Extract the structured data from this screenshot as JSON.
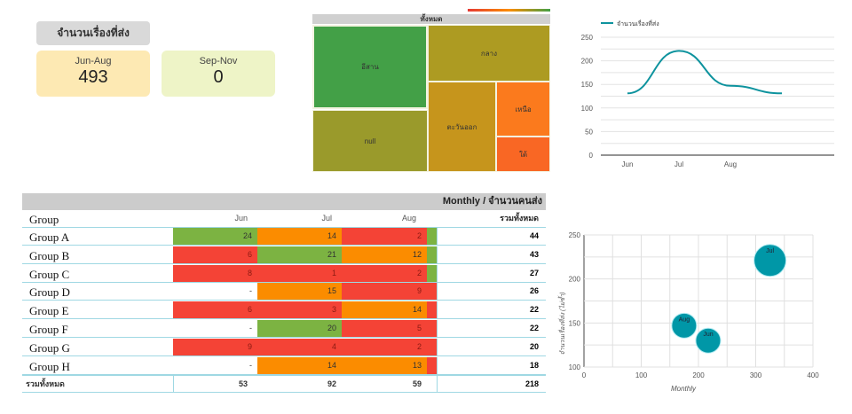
{
  "scorecard": {
    "title": "จำนวนเรื่องที่ส่ง",
    "cards": [
      {
        "label": "Jun-Aug",
        "value": "493",
        "color": "#fde9b3"
      },
      {
        "label": "Sep-Nov",
        "value": "0",
        "color": "#eef4c7"
      }
    ]
  },
  "treemap": {
    "title": "ทั้งหมด",
    "cells": [
      {
        "label": "อีสาน",
        "color": "#43a047"
      },
      {
        "label": "null",
        "color": "#9a9a2b"
      },
      {
        "label": "กลาง",
        "color": "#ad9b22"
      },
      {
        "label": "ตะวันออก",
        "color": "#c6951c"
      },
      {
        "label": "เหนือ",
        "color": "#fb7a1d"
      },
      {
        "label": "ใต้",
        "color": "#f96724"
      }
    ],
    "scale_colors": [
      "#e53935",
      "#fb8c00",
      "#43a047"
    ]
  },
  "line_chart": {
    "chart_data": {
      "type": "line",
      "legend": "จำนวนเรื่องที่ส่ง",
      "legend_position": "top-left",
      "categories": [
        "Jun",
        "Jul",
        "Aug",
        ""
      ],
      "values": [
        131,
        221,
        147,
        131
      ],
      "ylim": [
        0,
        250
      ],
      "yticks": [
        "0",
        "50",
        "100",
        "150",
        "200",
        "250"
      ],
      "color": "#0e939e",
      "grid": true
    }
  },
  "table": {
    "title": "Monthly / จำนวนคนส่ง",
    "columns": [
      "Group",
      "Jun",
      "Jul",
      "Aug",
      "รวมทั้งหมด"
    ],
    "rows": [
      {
        "group": "Group A",
        "jun": "24",
        "jul": "14",
        "aug": "2",
        "total": "44",
        "colors": [
          "#7cb342",
          "#fb8c00",
          "#f44336",
          "#7cb342"
        ]
      },
      {
        "group": "Group B",
        "jun": "6",
        "jul": "21",
        "aug": "12",
        "total": "43",
        "colors": [
          "#f44336",
          "#7cb342",
          "#fb8c00",
          "#7cb342"
        ]
      },
      {
        "group": "Group C",
        "jun": "8",
        "jul": "1",
        "aug": "2",
        "total": "27",
        "colors": [
          "#f44336",
          "#f44336",
          "#f44336",
          "#7cb342"
        ]
      },
      {
        "group": "Group D",
        "jun": "-",
        "jul": "15",
        "aug": "9",
        "total": "26",
        "colors": [
          "#ffffff",
          "#fb8c00",
          "#f44336",
          "#f44336"
        ]
      },
      {
        "group": "Group E",
        "jun": "6",
        "jul": "3",
        "aug": "14",
        "total": "22",
        "colors": [
          "#f44336",
          "#f44336",
          "#fb8c00",
          "#f44336"
        ]
      },
      {
        "group": "Group F",
        "jun": "-",
        "jul": "20",
        "aug": "5",
        "total": "22",
        "colors": [
          "#ffffff",
          "#7cb342",
          "#f44336",
          "#f44336"
        ]
      },
      {
        "group": "Group G",
        "jun": "9",
        "jul": "4",
        "aug": "2",
        "total": "20",
        "colors": [
          "#f44336",
          "#f44336",
          "#f44336",
          "#f44336"
        ]
      },
      {
        "group": "Group H",
        "jun": "-",
        "jul": "14",
        "aug": "13",
        "total": "18",
        "colors": [
          "#ffffff",
          "#fb8c00",
          "#fb8c00",
          "#f44336"
        ]
      }
    ],
    "totals": {
      "label": "รวมทั้งหมด",
      "jun": "53",
      "jul": "92",
      "aug": "59",
      "total": "218"
    }
  },
  "bubble_chart": {
    "chart_data": {
      "type": "scatter",
      "xlabel": "Monthly",
      "ylabel": "จำนวนเรื่องที่ส่ง (ไม่ซ้ำ)",
      "xlim": [
        0,
        400
      ],
      "ylim": [
        100,
        250
      ],
      "xticks": [
        "0",
        "100",
        "200",
        "300",
        "400"
      ],
      "yticks": [
        "100",
        "150",
        "200",
        "250"
      ],
      "color": "#0097a7",
      "points": [
        {
          "label": "Jul",
          "x": 325,
          "y": 221
        },
        {
          "label": "Aug",
          "x": 175,
          "y": 147
        },
        {
          "label": "Jun",
          "x": 217,
          "y": 130
        }
      ]
    }
  }
}
